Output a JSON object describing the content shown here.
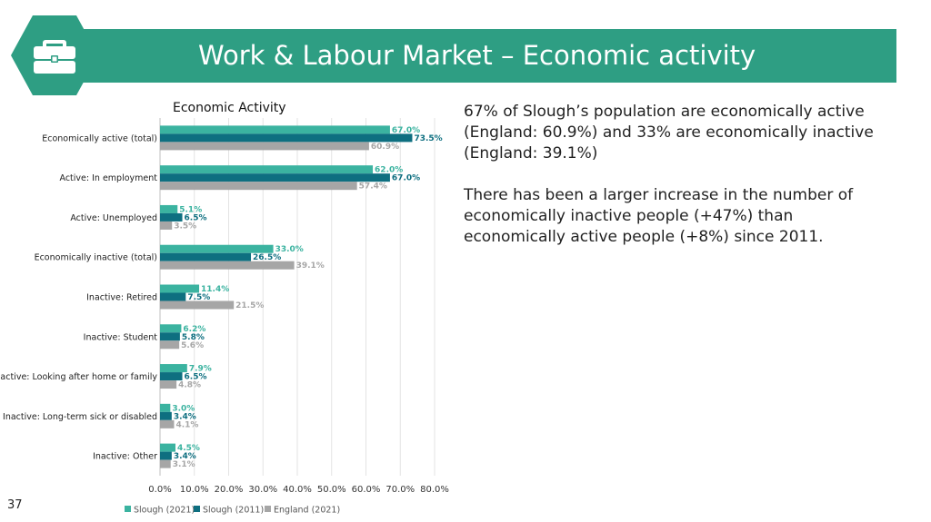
{
  "slide": {
    "title": "Work & Labour Market – Economic activity",
    "page_number": "37",
    "icon": "briefcase-icon",
    "accent_color": "#2e9e83"
  },
  "text_panel": {
    "paragraph_1": "67% of Slough’s population are economically active (England: 60.9%) and 33% are economically inactive (England: 39.1%)",
    "paragraph_2": "There has been a larger increase in the number of economically inactive people (+47%) than economically active people (+8%) since 2011."
  },
  "chart_data": {
    "type": "bar",
    "orientation": "horizontal",
    "title": "Economic Activity",
    "categories": [
      "Economically active (total)",
      "Active: In employment",
      "Active: Unemployed",
      "Economically inactive (total)",
      "Inactive: Retired",
      "Inactive: Student",
      "Inactive: Looking after home or family",
      "Inactive: Long-term sick or disabled",
      "Inactive: Other"
    ],
    "series": [
      {
        "name": "Slough (2021)",
        "color": "#3bb3a0",
        "values": [
          67.0,
          62.0,
          5.1,
          33.0,
          11.4,
          6.2,
          7.9,
          3.0,
          4.5
        ],
        "labels": [
          "67.0%",
          "62.0%",
          "5.1%",
          "33.0%",
          "11.4%",
          "6.2%",
          "7.9%",
          "3.0%",
          "4.5%"
        ]
      },
      {
        "name": "Slough (2011)",
        "color": "#0e6f80",
        "values": [
          73.5,
          67.0,
          6.5,
          26.5,
          7.5,
          5.8,
          6.5,
          3.4,
          3.4
        ],
        "labels": [
          "73.5%",
          "67.0%",
          "6.5%",
          "26.5%",
          "7.5%",
          "5.8%",
          "6.5%",
          "3.4%",
          "3.4%"
        ]
      },
      {
        "name": "England (2021)",
        "color": "#a6a6a6",
        "values": [
          60.9,
          57.4,
          3.5,
          39.1,
          21.5,
          5.6,
          4.8,
          4.1,
          3.1
        ],
        "labels": [
          "60.9%",
          "57.4%",
          "3.5%",
          "39.1%",
          "21.5%",
          "5.6%",
          "4.8%",
          "4.1%",
          "3.1%"
        ]
      }
    ],
    "x_ticks": [
      "0.0%",
      "10.0%",
      "20.0%",
      "30.0%",
      "40.0%",
      "50.0%",
      "60.0%",
      "70.0%",
      "80.0%"
    ],
    "xlim": [
      0,
      80
    ],
    "grid": "vertical",
    "legend": "bottom"
  }
}
